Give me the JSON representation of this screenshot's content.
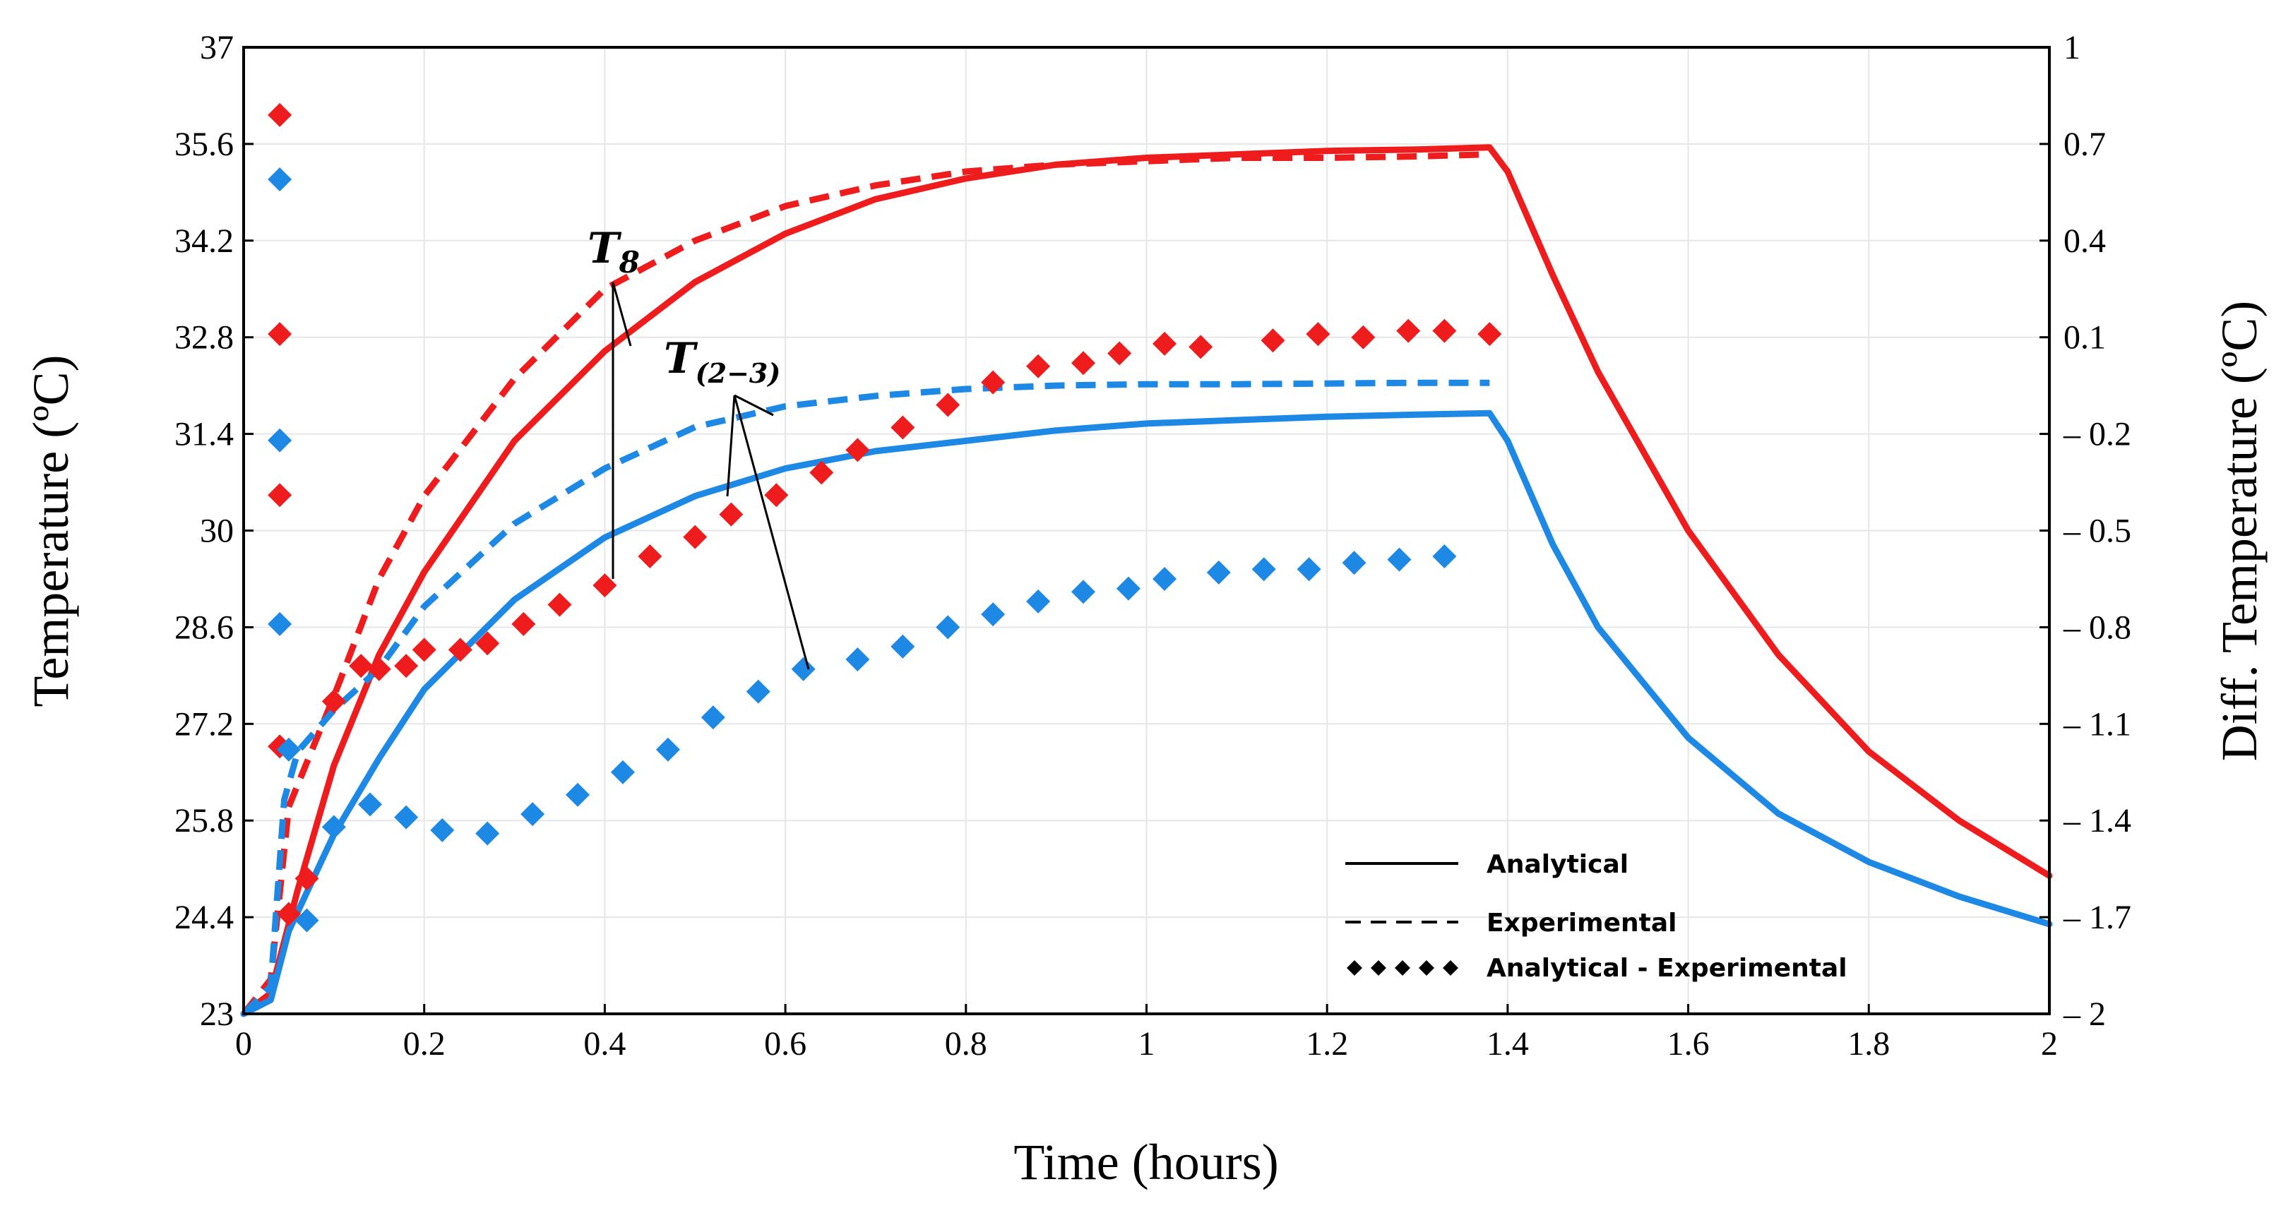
{
  "chart_data": {
    "type": "line",
    "xlabel": "Time (hours)",
    "ylabel": "Temperature (ºC)",
    "y2label": "Diff. Temperature (ºC)",
    "xlim": [
      0,
      2
    ],
    "ylim": [
      23,
      37
    ],
    "y2lim": [
      -2,
      1
    ],
    "x_ticks": [
      "0",
      "0.2",
      "0.4",
      "0.6",
      "0.8",
      "1",
      "1.2",
      "1.4",
      "1.6",
      "1.8",
      "2"
    ],
    "y_ticks": [
      "23",
      "24.4",
      "25.8",
      "27.2",
      "28.6",
      "30",
      "31.4",
      "32.8",
      "34.2",
      "35.6",
      "37"
    ],
    "y2_ticks": [
      "– 2",
      "– 1.7",
      "– 1.4",
      "– 1.1",
      "– 0.8",
      "– 0.5",
      "– 0.2",
      "0.1",
      "0.4",
      "0.7",
      "1"
    ],
    "grid": true,
    "legend_position": "bottom-right",
    "legend": [
      {
        "label": "Analytical",
        "style": "solid"
      },
      {
        "label": "Experimental",
        "style": "dashed"
      },
      {
        "label": "Analytical - Experimental",
        "style": "diamond"
      }
    ],
    "annotations": [
      {
        "label": "T",
        "subscript": "8"
      },
      {
        "label": "T",
        "subscript": "(2−3)"
      }
    ],
    "colors": {
      "T8": "#ee1c1c",
      "T23": "#1e88e5"
    },
    "series": [
      {
        "color": "#ee1c1c",
        "style": "solid",
        "axis": "left",
        "x": [
          0,
          0.03,
          0.06,
          0.1,
          0.15,
          0.2,
          0.3,
          0.4,
          0.5,
          0.6,
          0.7,
          0.8,
          0.9,
          1.0,
          1.1,
          1.2,
          1.3,
          1.38,
          1.4,
          1.45,
          1.5,
          1.6,
          1.7,
          1.8,
          1.9,
          2.0
        ],
        "y": [
          23,
          23.3,
          24.8,
          26.6,
          28.2,
          29.4,
          31.3,
          32.6,
          33.6,
          34.3,
          34.8,
          35.1,
          35.3,
          35.4,
          35.45,
          35.5,
          35.52,
          35.55,
          35.2,
          33.7,
          32.3,
          30.0,
          28.2,
          26.8,
          25.8,
          25.0
        ]
      },
      {
        "color": "#ee1c1c",
        "style": "dashed",
        "axis": "left",
        "x": [
          0,
          0.03,
          0.05,
          0.1,
          0.15,
          0.2,
          0.3,
          0.4,
          0.5,
          0.6,
          0.7,
          0.8,
          0.9,
          1.0,
          1.1,
          1.2,
          1.3,
          1.38
        ],
        "y": [
          23,
          23.5,
          26.0,
          27.6,
          29.3,
          30.5,
          32.2,
          33.5,
          34.2,
          34.7,
          35.0,
          35.2,
          35.3,
          35.35,
          35.4,
          35.4,
          35.42,
          35.45
        ]
      },
      {
        "color": "#1e88e5",
        "style": "solid",
        "axis": "left",
        "x": [
          0,
          0.03,
          0.05,
          0.1,
          0.15,
          0.2,
          0.3,
          0.4,
          0.5,
          0.6,
          0.7,
          0.8,
          0.9,
          1.0,
          1.1,
          1.2,
          1.3,
          1.38,
          1.4,
          1.45,
          1.5,
          1.6,
          1.7,
          1.8,
          1.9,
          2.0
        ],
        "y": [
          23,
          23.2,
          24.2,
          25.6,
          26.7,
          27.7,
          29.0,
          29.9,
          30.5,
          30.9,
          31.15,
          31.3,
          31.45,
          31.55,
          31.6,
          31.65,
          31.68,
          31.7,
          31.3,
          29.8,
          28.6,
          27.0,
          25.9,
          25.2,
          24.7,
          24.3
        ]
      },
      {
        "color": "#1e88e5",
        "style": "dashed",
        "axis": "left",
        "x": [
          0,
          0.03,
          0.045,
          0.06,
          0.1,
          0.15,
          0.2,
          0.3,
          0.4,
          0.5,
          0.6,
          0.7,
          0.8,
          0.9,
          1.0,
          1.1,
          1.2,
          1.3,
          1.38
        ],
        "y": [
          23,
          23.4,
          26.1,
          26.8,
          27.4,
          28.0,
          28.9,
          30.1,
          30.9,
          31.5,
          31.8,
          31.95,
          32.05,
          32.1,
          32.12,
          32.12,
          32.13,
          32.14,
          32.14
        ]
      },
      {
        "color": "#ee1c1c",
        "style": "diamond",
        "axis": "right",
        "x": [
          0.04,
          0.04,
          0.04,
          0.04,
          0.05,
          0.07,
          0.1,
          0.13,
          0.15,
          0.18,
          0.2,
          0.24,
          0.27,
          0.31,
          0.35,
          0.4,
          0.45,
          0.5,
          0.54,
          0.59,
          0.64,
          0.68,
          0.73,
          0.78,
          0.83,
          0.88,
          0.93,
          0.97,
          1.02,
          1.06,
          1.14,
          1.19,
          1.24,
          1.29,
          1.33,
          1.38
        ],
        "y": [
          0.79,
          0.11,
          -0.39,
          -1.17,
          -1.69,
          -1.58,
          -1.03,
          -0.92,
          -0.93,
          -0.92,
          -0.87,
          -0.87,
          -0.85,
          -0.79,
          -0.73,
          -0.67,
          -0.58,
          -0.52,
          -0.45,
          -0.39,
          -0.32,
          -0.25,
          -0.18,
          -0.11,
          -0.04,
          0.01,
          0.02,
          0.05,
          0.08,
          0.07,
          0.09,
          0.11,
          0.1,
          0.12,
          0.12,
          0.11
        ]
      },
      {
        "color": "#1e88e5",
        "style": "diamond",
        "axis": "right",
        "x": [
          0.04,
          0.04,
          0.04,
          0.05,
          0.07,
          0.1,
          0.14,
          0.18,
          0.22,
          0.27,
          0.32,
          0.37,
          0.42,
          0.47,
          0.52,
          0.57,
          0.62,
          0.68,
          0.73,
          0.78,
          0.83,
          0.88,
          0.93,
          0.98,
          1.02,
          1.08,
          1.13,
          1.18,
          1.23,
          1.28,
          1.33
        ],
        "y": [
          0.59,
          -0.22,
          -0.79,
          -1.18,
          -1.71,
          -1.42,
          -1.35,
          -1.39,
          -1.43,
          -1.44,
          -1.38,
          -1.32,
          -1.25,
          -1.18,
          -1.08,
          -1.0,
          -0.93,
          -0.9,
          -0.86,
          -0.8,
          -0.76,
          -0.72,
          -0.69,
          -0.68,
          -0.65,
          -0.63,
          -0.62,
          -0.62,
          -0.6,
          -0.59,
          -0.58
        ]
      }
    ]
  }
}
